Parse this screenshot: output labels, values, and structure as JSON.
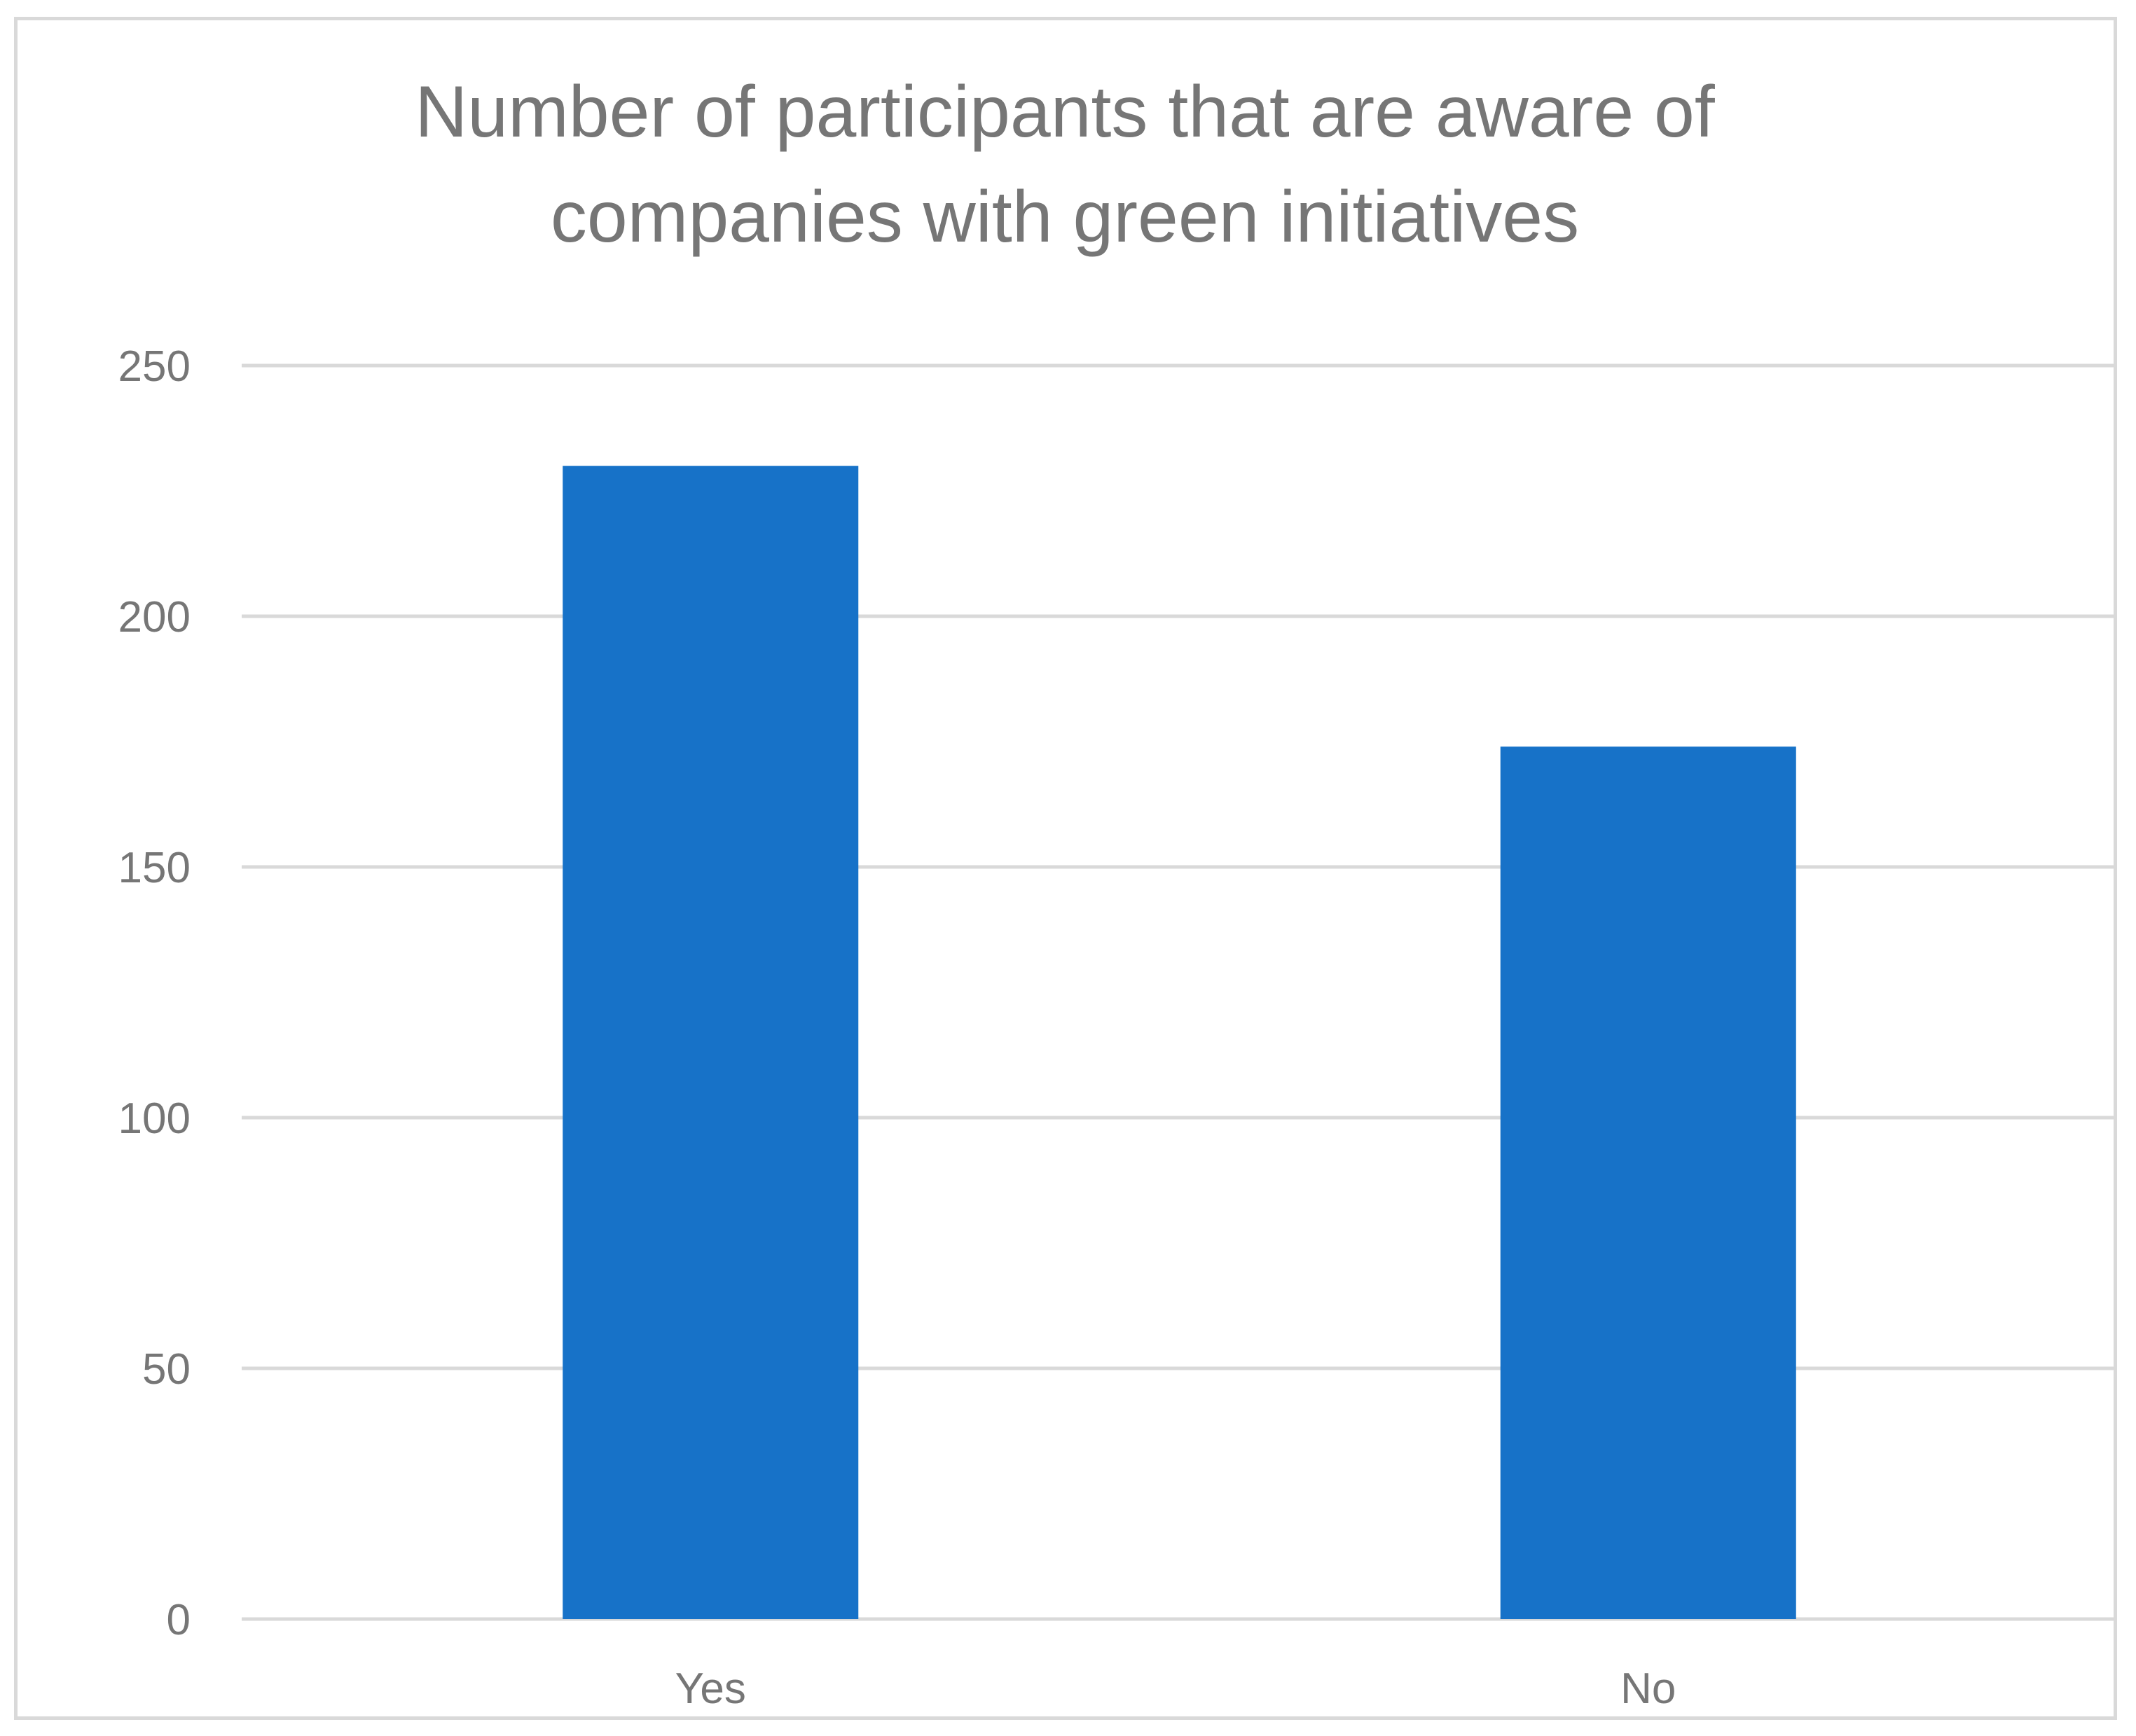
{
  "chart_data": {
    "type": "bar",
    "title_lines": [
      "Number of participants that are aware of",
      "companies with green initiatives"
    ],
    "categories": [
      "Yes",
      "No"
    ],
    "values": [
      230,
      174
    ],
    "ylim": [
      0,
      250
    ],
    "y_ticks": [
      "0",
      "50",
      "100",
      "150",
      "200",
      "250"
    ],
    "grid": true,
    "legend": "none",
    "bar_color": "#1772c8",
    "grid_color": "#d9d9d9",
    "text_color": "#767676"
  }
}
